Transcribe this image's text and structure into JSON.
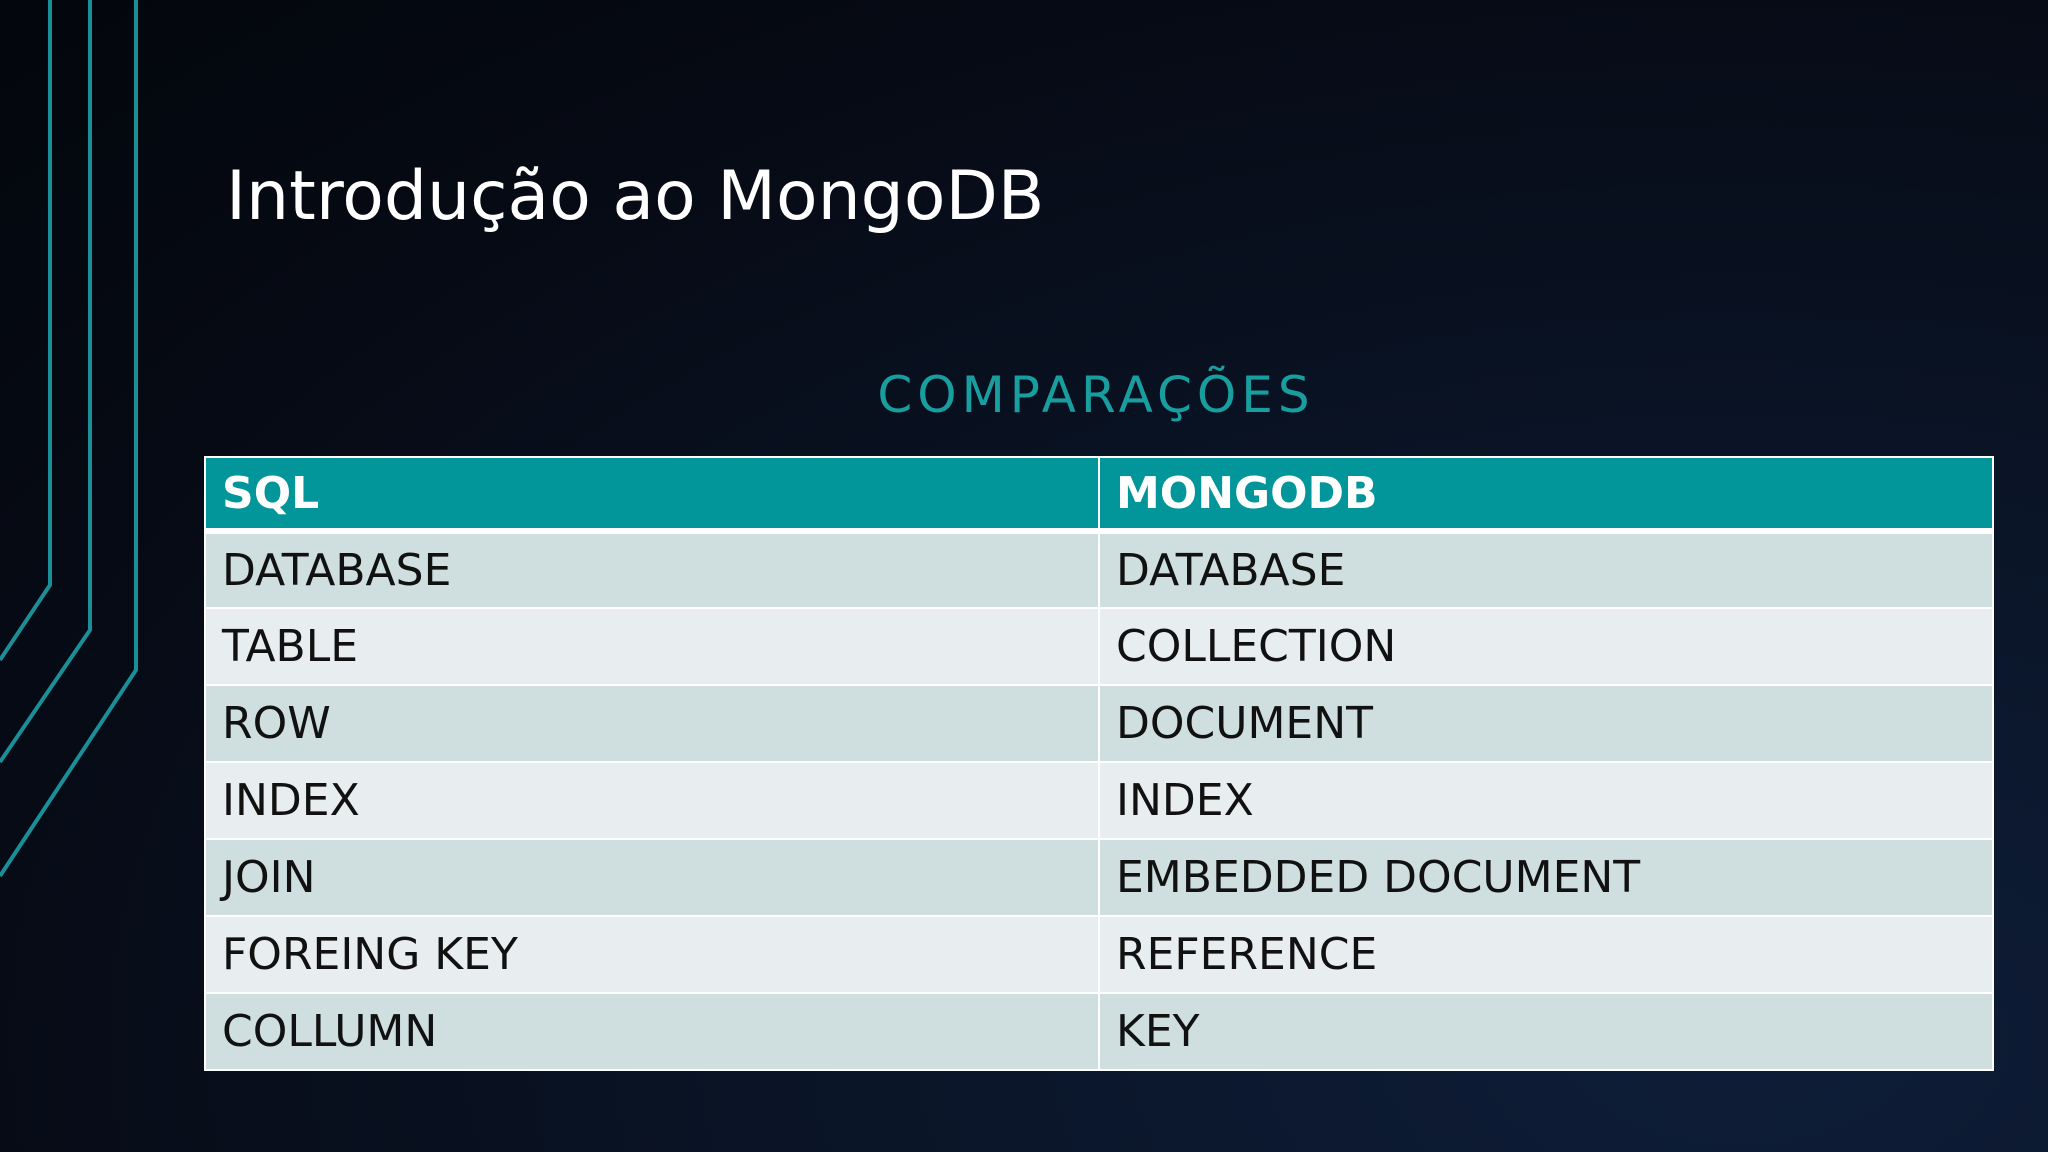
{
  "slide": {
    "title": "Introdução ao MongoDB",
    "subtitle": "COMPARAÇÕES"
  },
  "table": {
    "headers": [
      "SQL",
      "MONGODB"
    ],
    "rows": [
      [
        "DATABASE",
        "DATABASE"
      ],
      [
        "TABLE",
        "COLLECTION"
      ],
      [
        "ROW",
        "DOCUMENT"
      ],
      [
        "INDEX",
        "INDEX"
      ],
      [
        "JOIN",
        "EMBEDDED DOCUMENT"
      ],
      [
        "FOREING KEY",
        "REFERENCE"
      ],
      [
        "COLLUMN",
        "KEY"
      ]
    ]
  },
  "colors": {
    "accent": "#02969a",
    "subtitle": "#199ea0",
    "row_odd": "#cfdfe0",
    "row_even": "#e8eef0",
    "background": "#060a14"
  }
}
